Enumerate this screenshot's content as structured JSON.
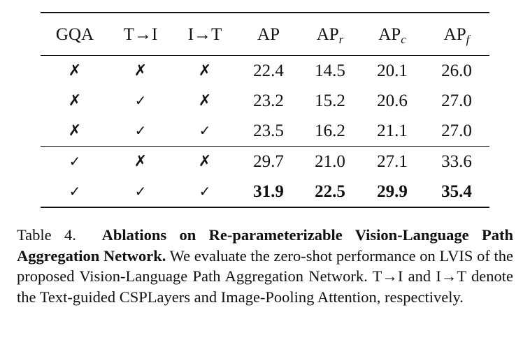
{
  "table": {
    "headers": [
      {
        "main": "GQA",
        "sub": ""
      },
      {
        "main": "T→I",
        "sub": ""
      },
      {
        "main": "I→T",
        "sub": ""
      },
      {
        "main": "AP",
        "sub": ""
      },
      {
        "main": "AP",
        "sub": "r"
      },
      {
        "main": "AP",
        "sub": "c"
      },
      {
        "main": "AP",
        "sub": "f"
      }
    ],
    "group1": [
      {
        "marks": [
          "✗",
          "✗",
          "✗"
        ],
        "values": [
          "22.4",
          "14.5",
          "20.1",
          "26.0"
        ],
        "bold": false
      },
      {
        "marks": [
          "✗",
          "✓",
          "✗"
        ],
        "values": [
          "23.2",
          "15.2",
          "20.6",
          "27.0"
        ],
        "bold": false
      },
      {
        "marks": [
          "✗",
          "✓",
          "✓"
        ],
        "values": [
          "23.5",
          "16.2",
          "21.1",
          "27.0"
        ],
        "bold": false
      }
    ],
    "group2": [
      {
        "marks": [
          "✓",
          "✗",
          "✗"
        ],
        "values": [
          "29.7",
          "21.0",
          "27.1",
          "33.6"
        ],
        "bold": false
      },
      {
        "marks": [
          "✓",
          "✓",
          "✓"
        ],
        "values": [
          "31.9",
          "22.5",
          "29.9",
          "35.4"
        ],
        "bold": true
      }
    ]
  },
  "caption": {
    "label": "Table 4.",
    "bold_title": "Ablations on Re-parameterizable Vision-Language Path Aggregation Network.",
    "text": "We evaluate the zero-shot performance on LVIS of the proposed Vision-Language Path Aggregation Network. T→I and I→T denote the Text-guided CSPLayers and Image-Pooling Attention, respectively."
  }
}
